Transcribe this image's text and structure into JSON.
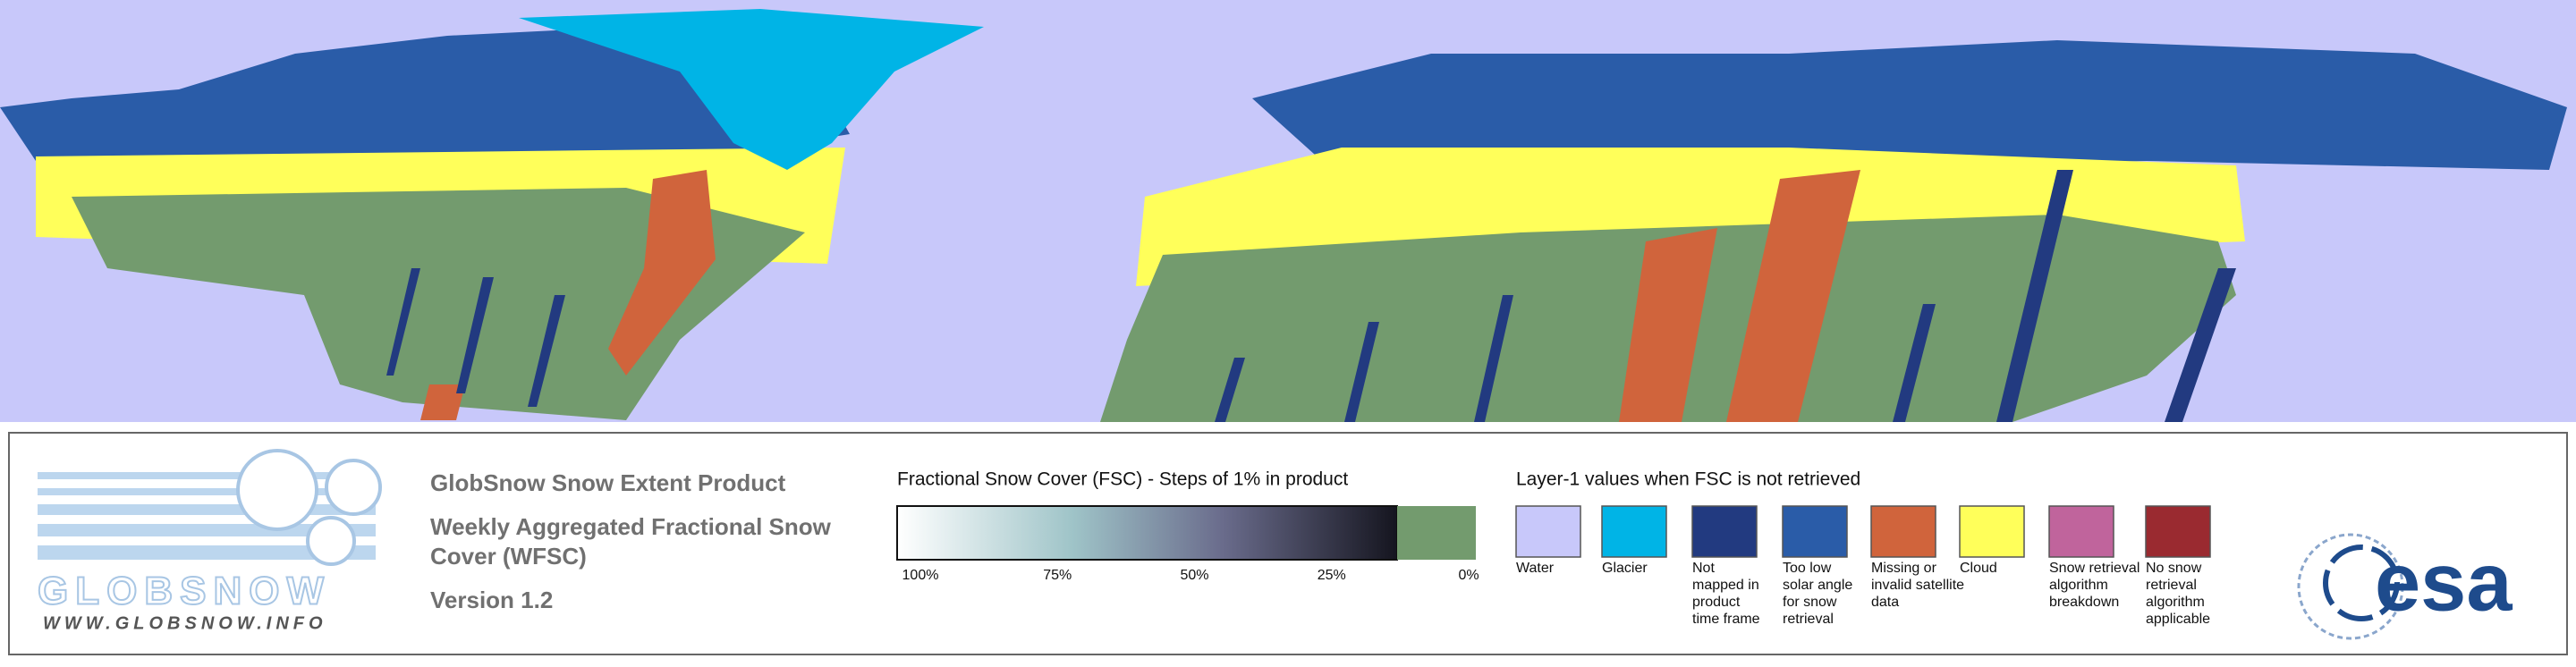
{
  "logo": {
    "name": "GLOBSNOW",
    "url": "WWW.GLOBSNOW.INFO"
  },
  "product": {
    "title": "GlobSnow Snow Extent Product",
    "subtitle_lines": [
      "Weekly Aggregated Fractional Snow",
      "Cover (WFSC)"
    ],
    "version": "Version 1.2"
  },
  "fsc_legend": {
    "title": "Fractional Snow Cover (FSC) - Steps of 1% in product",
    "ticks": [
      "100%",
      "75%",
      "50%",
      "25%",
      "0%"
    ]
  },
  "layer1_legend": {
    "title": "Layer-1 values when FSC is not retrieved",
    "items": [
      {
        "label_lines": [
          "Water"
        ],
        "color": "#c8c8fa"
      },
      {
        "label_lines": [
          "Glacier"
        ],
        "color": "#00b4e6"
      },
      {
        "label_lines": [
          "Not",
          "mapped in",
          "product",
          "time frame"
        ],
        "color": "#223a80"
      },
      {
        "label_lines": [
          "Too low",
          "solar angle",
          "for snow",
          "retrieval"
        ],
        "color": "#2a5ca8"
      },
      {
        "label_lines": [
          "Missing or",
          "invalid satellite",
          "data"
        ],
        "color": "#d0643c"
      },
      {
        "label_lines": [
          "Cloud"
        ],
        "color": "#ffff5a"
      },
      {
        "label_lines": [
          "Snow retrieval",
          "algorithm",
          "breakdown"
        ],
        "color": "#c0649c"
      },
      {
        "label_lines": [
          "No snow",
          "retrieval",
          "algorithm",
          "applicable"
        ],
        "color": "#9a2a30"
      }
    ]
  },
  "esa_logo": "esa"
}
